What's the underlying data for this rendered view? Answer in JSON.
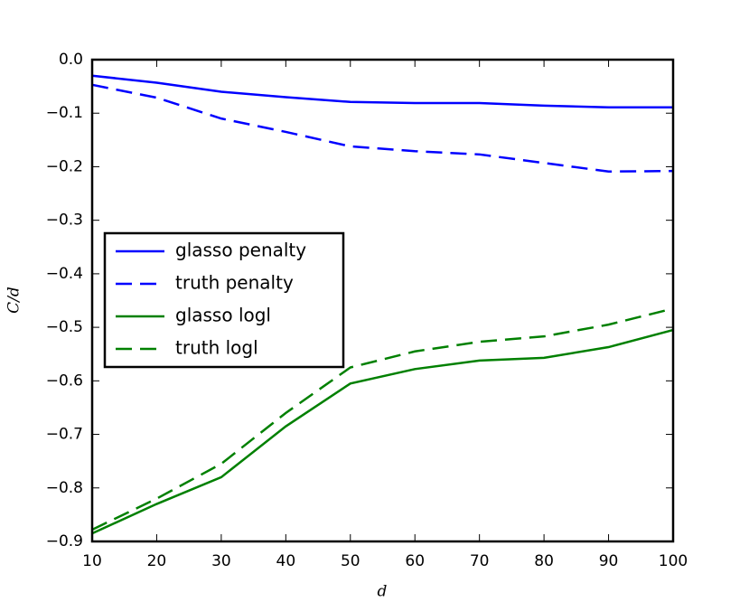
{
  "chart_data": {
    "type": "line",
    "x_label": "d",
    "y_label": "C/d",
    "x": [
      10,
      20,
      30,
      40,
      50,
      60,
      70,
      80,
      90,
      100
    ],
    "series": [
      {
        "name": "glasso penalty",
        "color": "#0000ff",
        "linestyle": "solid",
        "values": [
          -0.03,
          -0.043,
          -0.06,
          -0.07,
          -0.079,
          -0.081,
          -0.081,
          -0.086,
          -0.089,
          -0.089
        ]
      },
      {
        "name": "truth penalty",
        "color": "#0000ff",
        "linestyle": "dashed",
        "values": [
          -0.047,
          -0.071,
          -0.11,
          -0.135,
          -0.162,
          -0.171,
          -0.177,
          -0.193,
          -0.209,
          -0.208
        ]
      },
      {
        "name": "glasso logl",
        "color": "#008000",
        "linestyle": "solid",
        "values": [
          -0.885,
          -0.83,
          -0.78,
          -0.685,
          -0.605,
          -0.578,
          -0.562,
          -0.557,
          -0.537,
          -0.505
        ]
      },
      {
        "name": "truth logl",
        "color": "#008000",
        "linestyle": "dashed",
        "values": [
          -0.878,
          -0.82,
          -0.755,
          -0.66,
          -0.575,
          -0.545,
          -0.527,
          -0.517,
          -0.495,
          -0.465
        ]
      }
    ],
    "xlim": [
      10,
      100
    ],
    "ylim": [
      -0.9,
      0
    ],
    "xticks": [
      10,
      20,
      30,
      40,
      50,
      60,
      70,
      80,
      90,
      100
    ],
    "yticks": [
      {
        "value": 0,
        "label": "0.0"
      },
      {
        "value": -0.1,
        "label": "−0.1"
      },
      {
        "value": -0.2,
        "label": "−0.2"
      },
      {
        "value": -0.3,
        "label": "−0.3"
      },
      {
        "value": -0.4,
        "label": "−0.4"
      },
      {
        "value": -0.5,
        "label": "−0.5"
      },
      {
        "value": -0.6,
        "label": "−0.6"
      },
      {
        "value": -0.7,
        "label": "−0.7"
      },
      {
        "value": -0.8,
        "label": "−0.8"
      },
      {
        "value": -0.9,
        "label": "−0.9"
      }
    ],
    "grid": false,
    "legend": "center left"
  }
}
